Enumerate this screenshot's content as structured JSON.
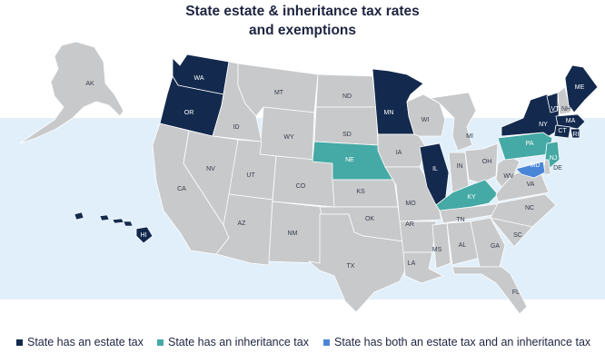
{
  "title_line1": "State estate & inheritance tax rates",
  "title_line2": "and exemptions",
  "colors": {
    "estate": "#132a4e",
    "inheritance": "#45a9a5",
    "both": "#4a86d8",
    "none": "#c8c9cb",
    "ocean": "#e1effa",
    "border": "#ffffff"
  },
  "legend": {
    "estate": "State has an estate tax",
    "inheritance": "State has an inheritance tax",
    "both": "State has both an estate tax and an inheritance tax"
  },
  "states": [
    {
      "abbr": "AK",
      "category": "none"
    },
    {
      "abbr": "HI",
      "category": "estate"
    },
    {
      "abbr": "WA",
      "category": "estate"
    },
    {
      "abbr": "OR",
      "category": "estate"
    },
    {
      "abbr": "CA",
      "category": "none"
    },
    {
      "abbr": "ID",
      "category": "none"
    },
    {
      "abbr": "NV",
      "category": "none"
    },
    {
      "abbr": "MT",
      "category": "none"
    },
    {
      "abbr": "WY",
      "category": "none"
    },
    {
      "abbr": "UT",
      "category": "none"
    },
    {
      "abbr": "AZ",
      "category": "none"
    },
    {
      "abbr": "CO",
      "category": "none"
    },
    {
      "abbr": "NM",
      "category": "none"
    },
    {
      "abbr": "ND",
      "category": "none"
    },
    {
      "abbr": "SD",
      "category": "none"
    },
    {
      "abbr": "NE",
      "category": "inheritance"
    },
    {
      "abbr": "KS",
      "category": "none"
    },
    {
      "abbr": "OK",
      "category": "none"
    },
    {
      "abbr": "TX",
      "category": "none"
    },
    {
      "abbr": "MN",
      "category": "estate"
    },
    {
      "abbr": "IA",
      "category": "none"
    },
    {
      "abbr": "MO",
      "category": "none"
    },
    {
      "abbr": "AR",
      "category": "none"
    },
    {
      "abbr": "LA",
      "category": "none"
    },
    {
      "abbr": "WI",
      "category": "none"
    },
    {
      "abbr": "IL",
      "category": "estate"
    },
    {
      "abbr": "MI",
      "category": "none"
    },
    {
      "abbr": "IN",
      "category": "none"
    },
    {
      "abbr": "OH",
      "category": "none"
    },
    {
      "abbr": "KY",
      "category": "inheritance"
    },
    {
      "abbr": "TN",
      "category": "none"
    },
    {
      "abbr": "MS",
      "category": "none"
    },
    {
      "abbr": "AL",
      "category": "none"
    },
    {
      "abbr": "GA",
      "category": "none"
    },
    {
      "abbr": "FL",
      "category": "none"
    },
    {
      "abbr": "SC",
      "category": "none"
    },
    {
      "abbr": "NC",
      "category": "none"
    },
    {
      "abbr": "VA",
      "category": "none"
    },
    {
      "abbr": "WV",
      "category": "none"
    },
    {
      "abbr": "PA",
      "category": "inheritance"
    },
    {
      "abbr": "NY",
      "category": "estate"
    },
    {
      "abbr": "VT",
      "category": "estate"
    },
    {
      "abbr": "NH",
      "category": "none"
    },
    {
      "abbr": "ME",
      "category": "estate"
    },
    {
      "abbr": "MA",
      "category": "estate"
    },
    {
      "abbr": "RI",
      "category": "estate"
    },
    {
      "abbr": "CT",
      "category": "estate"
    },
    {
      "abbr": "NJ",
      "category": "inheritance"
    },
    {
      "abbr": "DE",
      "category": "none"
    },
    {
      "abbr": "MD",
      "category": "both"
    }
  ]
}
